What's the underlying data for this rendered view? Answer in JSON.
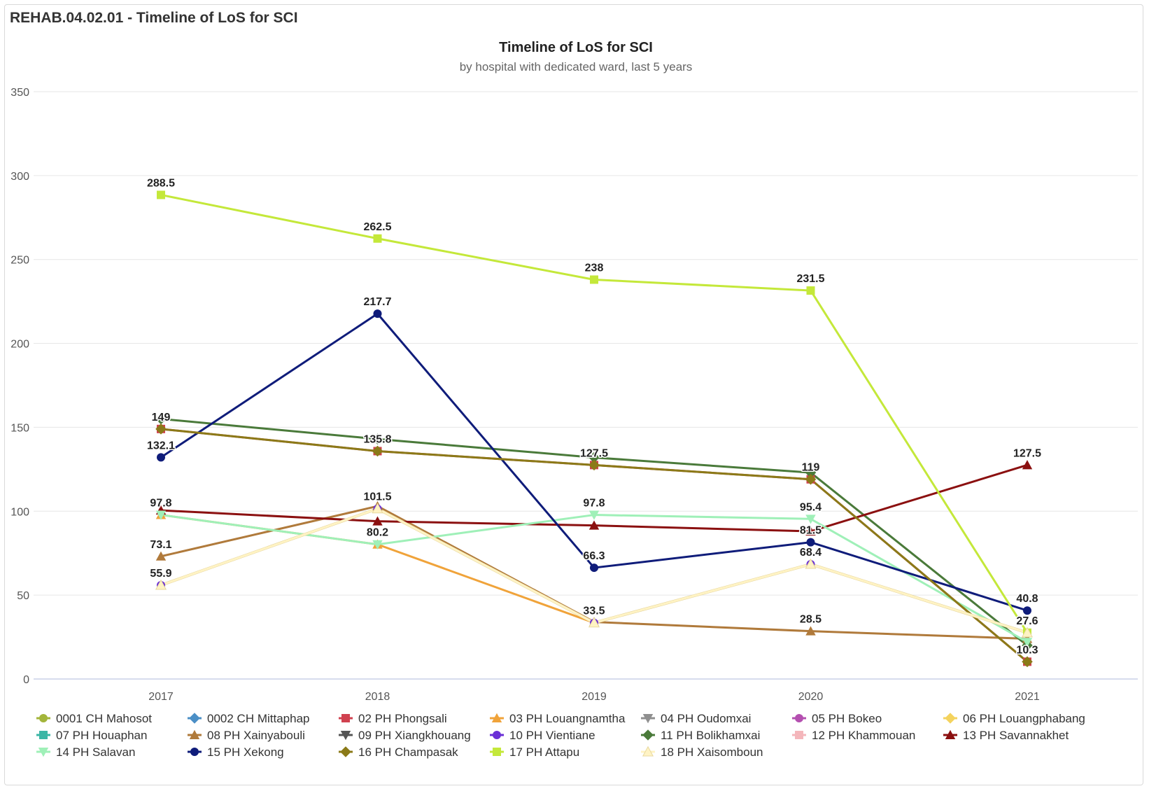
{
  "panel": {
    "title": "REHAB.04.02.01 - Timeline of LoS for SCI"
  },
  "chart_data": {
    "type": "line",
    "title": "Timeline of LoS for SCI",
    "subtitle": "by hospital with dedicated ward, last 5 years",
    "xlabel": "",
    "ylabel": "",
    "categories": [
      "2017",
      "2018",
      "2019",
      "2020",
      "2021"
    ],
    "ylim": [
      0,
      350
    ],
    "yticks": [
      0,
      50,
      100,
      150,
      200,
      250,
      300,
      350
    ],
    "grid": true,
    "legend_position": "bottom",
    "series": [
      {
        "name": "0001 CH Mahosot",
        "color": "#a3b53a",
        "marker": "circle",
        "values": [
          null,
          null,
          null,
          null,
          null
        ]
      },
      {
        "name": "0002 CH Mittaphap",
        "color": "#4b8fc6",
        "marker": "diamond",
        "values": [
          null,
          null,
          null,
          null,
          null
        ]
      },
      {
        "name": "02 PH Phongsali",
        "color": "#d0414f",
        "marker": "square",
        "values": [
          149,
          135.8,
          127.5,
          119,
          10.3
        ]
      },
      {
        "name": "03 PH Louangnamtha",
        "color": "#f0a33a",
        "marker": "triangle",
        "values": [
          97.8,
          80.2,
          33.5,
          68.4,
          27.6
        ]
      },
      {
        "name": "04 PH Oudomxai",
        "color": "#8f8f8f",
        "marker": "triangle-down",
        "values": [
          null,
          null,
          null,
          null,
          null
        ]
      },
      {
        "name": "05 PH Bokeo",
        "color": "#b44fb0",
        "marker": "circle",
        "values": [
          null,
          null,
          null,
          null,
          null
        ]
      },
      {
        "name": "06 PH Louangphabang",
        "color": "#f4d35e",
        "marker": "diamond",
        "values": [
          null,
          null,
          null,
          null,
          null
        ]
      },
      {
        "name": "07 PH Houaphan",
        "color": "#3bb6a6",
        "marker": "square",
        "values": [
          null,
          null,
          null,
          null,
          null
        ]
      },
      {
        "name": "08 PH Xainyabouli",
        "color": "#b07a3b",
        "marker": "triangle",
        "values": [
          73.1,
          103,
          34,
          28.5,
          24
        ]
      },
      {
        "name": "09 PH Xiangkhouang",
        "color": "#555555",
        "marker": "triangle-down",
        "values": [
          null,
          null,
          null,
          null,
          null
        ]
      },
      {
        "name": "10 PH Vientiane",
        "color": "#6a2fd6",
        "marker": "circle",
        "values": [
          55.9,
          101.5,
          33.5,
          68.4,
          null
        ]
      },
      {
        "name": "11 PH Bolikhamxai",
        "color": "#4a7a3a",
        "marker": "diamond",
        "values": [
          155,
          143,
          132,
          123,
          20
        ]
      },
      {
        "name": "12 PH Khammouan",
        "color": "#f4b6bb",
        "marker": "square",
        "values": [
          null,
          null,
          null,
          null,
          null
        ]
      },
      {
        "name": "13 PH Savannakhet",
        "color": "#8b1010",
        "marker": "triangle",
        "values": [
          100.5,
          94,
          91.5,
          88,
          127.5
        ]
      },
      {
        "name": "14 PH Salavan",
        "color": "#9ff0b8",
        "marker": "triangle-down",
        "values": [
          97.8,
          80.2,
          97.8,
          95.4,
          22
        ]
      },
      {
        "name": "15 PH Xekong",
        "color": "#0f1c7a",
        "marker": "circle",
        "values": [
          132.1,
          217.7,
          66.3,
          81.5,
          40.8
        ]
      },
      {
        "name": "16 PH Champasak",
        "color": "#8b7a18",
        "marker": "diamond",
        "values": [
          149,
          135.8,
          127.5,
          119,
          10.3
        ]
      },
      {
        "name": "17 PH Attapu",
        "color": "#c4e83a",
        "marker": "square",
        "values": [
          288.5,
          262.5,
          238,
          231.5,
          27.6
        ]
      },
      {
        "name": "18 PH Xaisomboun",
        "color": "#fff3c4",
        "marker": "triangle",
        "values": [
          55.9,
          101.5,
          33.5,
          68.4,
          27.6
        ]
      }
    ],
    "data_labels": [
      {
        "x": "2017",
        "y": 288.5,
        "text": "288.5"
      },
      {
        "x": "2018",
        "y": 262.5,
        "text": "262.5"
      },
      {
        "x": "2019",
        "y": 238,
        "text": "238"
      },
      {
        "x": "2020",
        "y": 231.5,
        "text": "231.5"
      },
      {
        "x": "2018",
        "y": 217.7,
        "text": "217.7"
      },
      {
        "x": "2017",
        "y": 149,
        "text": "149"
      },
      {
        "x": "2017",
        "y": 132.1,
        "text": "132.1"
      },
      {
        "x": "2018",
        "y": 135.8,
        "text": "135.8"
      },
      {
        "x": "2019",
        "y": 127.5,
        "text": "127.5"
      },
      {
        "x": "2020",
        "y": 119,
        "text": "119"
      },
      {
        "x": "2021",
        "y": 127.5,
        "text": "127.5"
      },
      {
        "x": "2017",
        "y": 97.8,
        "text": "97.8"
      },
      {
        "x": "2018",
        "y": 101.5,
        "text": "101.5"
      },
      {
        "x": "2019",
        "y": 97.8,
        "text": "97.8"
      },
      {
        "x": "2020",
        "y": 95.4,
        "text": "95.4"
      },
      {
        "x": "2018",
        "y": 80.2,
        "text": "80.2"
      },
      {
        "x": "2020",
        "y": 81.5,
        "text": "81.5"
      },
      {
        "x": "2017",
        "y": 73.1,
        "text": "73.1"
      },
      {
        "x": "2019",
        "y": 66.3,
        "text": "66.3"
      },
      {
        "x": "2020",
        "y": 68.4,
        "text": "68.4"
      },
      {
        "x": "2017",
        "y": 55.9,
        "text": "55.9"
      },
      {
        "x": "2021",
        "y": 40.8,
        "text": "40.8"
      },
      {
        "x": "2019",
        "y": 33.5,
        "text": "33.5"
      },
      {
        "x": "2020",
        "y": 28.5,
        "text": "28.5"
      },
      {
        "x": "2021",
        "y": 27.6,
        "text": "27.6"
      },
      {
        "x": "2021",
        "y": 10.3,
        "text": "10.3"
      }
    ]
  }
}
